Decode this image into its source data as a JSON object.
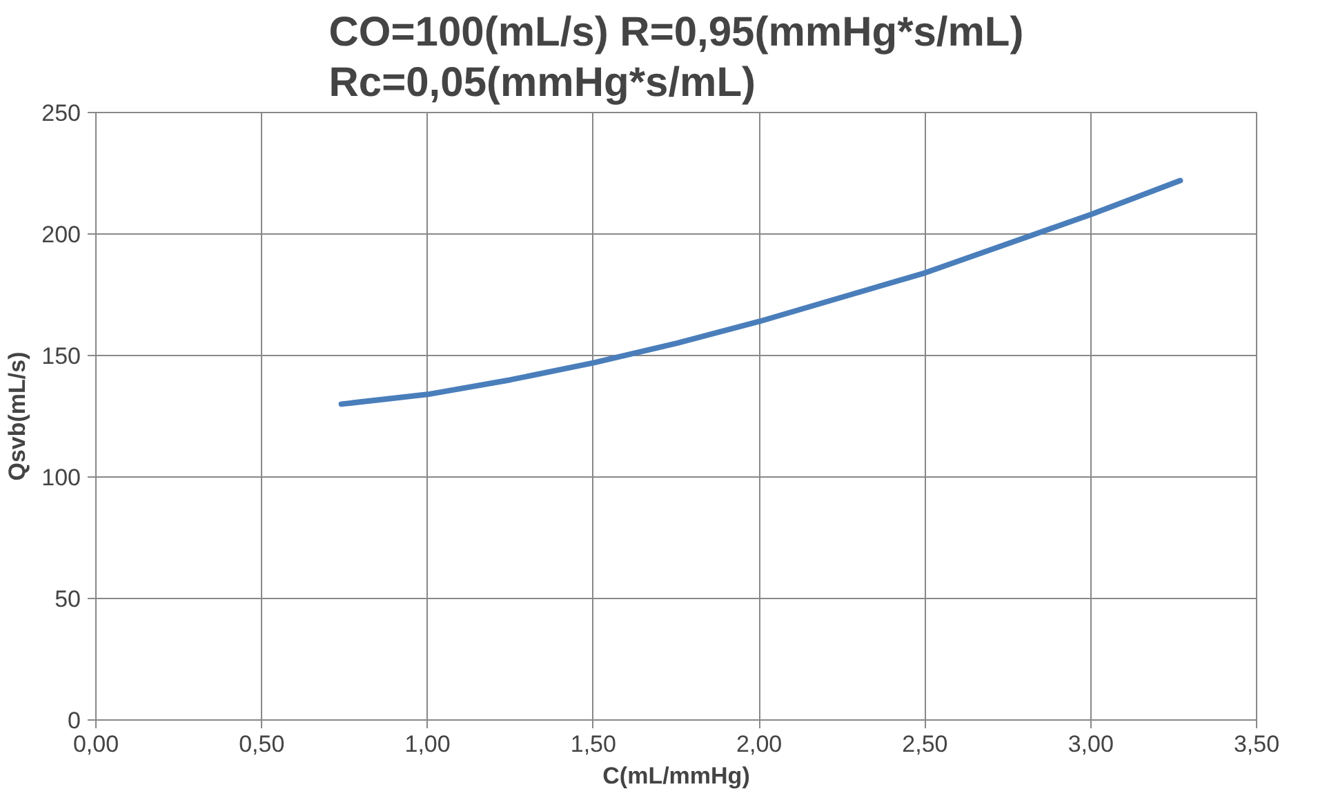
{
  "chart_data": {
    "type": "line",
    "title": "CO=100(mL/s) R=0,95(mmHg*s/mL)\nRc=0,05(mmHg*s/mL)",
    "xlabel": "C(mL/mmHg)",
    "ylabel": "Qsvb(mL/s)",
    "x": [
      0.74,
      1.0,
      1.25,
      1.5,
      1.75,
      2.0,
      2.25,
      2.5,
      2.75,
      3.0,
      3.27
    ],
    "series": [
      {
        "color": "#4a7ebb",
        "values": [
          130,
          134,
          140,
          147,
          155,
          164,
          174,
          184,
          196,
          208,
          222
        ]
      }
    ],
    "xlim": [
      0,
      3.5
    ],
    "ylim": [
      0,
      250
    ],
    "xticks": [
      {
        "value": 0,
        "label": "0,00"
      },
      {
        "value": 0.5,
        "label": "0,50"
      },
      {
        "value": 1,
        "label": "1,00"
      },
      {
        "value": 1.5,
        "label": "1,50"
      },
      {
        "value": 2,
        "label": "2,00"
      },
      {
        "value": 2.5,
        "label": "2,50"
      },
      {
        "value": 3,
        "label": "3,00"
      },
      {
        "value": 3.5,
        "label": "3,50"
      }
    ],
    "yticks": [
      0,
      50,
      100,
      150,
      200,
      250
    ],
    "grid": true,
    "marker": "none",
    "line_style": "solid"
  }
}
